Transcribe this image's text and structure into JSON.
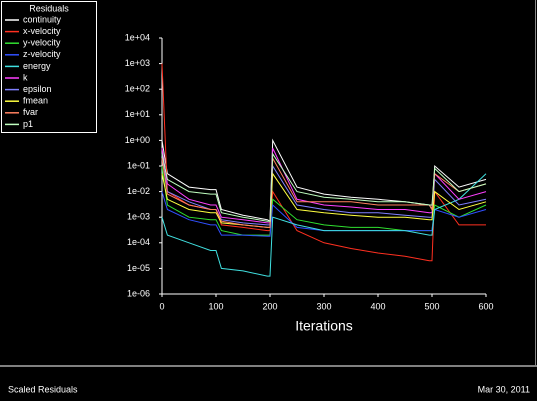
{
  "chart_data": {
    "type": "line",
    "log_y": true,
    "legend_title": "Residuals",
    "xlabel": "Iterations",
    "x": [
      0,
      10,
      50,
      90,
      100,
      110,
      150,
      195,
      200,
      205,
      250,
      300,
      350,
      400,
      450,
      495,
      500,
      505,
      550,
      600
    ],
    "xlim": [
      0,
      600
    ],
    "xticks": [
      0,
      100,
      200,
      300,
      400,
      500,
      600
    ],
    "ylim": [
      1e-06,
      10000
    ],
    "yticks": [
      {
        "value": 10000,
        "label": "1e+04"
      },
      {
        "value": 1000,
        "label": "1e+03"
      },
      {
        "value": 100,
        "label": "1e+02"
      },
      {
        "value": 10,
        "label": "1e+01"
      },
      {
        "value": 1,
        "label": "1e+00"
      },
      {
        "value": 0.1,
        "label": "1e-01"
      },
      {
        "value": 0.01,
        "label": "1e-02"
      },
      {
        "value": 0.001,
        "label": "1e-03"
      },
      {
        "value": 0.0001,
        "label": "1e-04"
      },
      {
        "value": 1e-05,
        "label": "1e-05"
      },
      {
        "value": 1e-06,
        "label": "1e-06"
      }
    ],
    "series": [
      {
        "name": "continuity",
        "color": "#ffffff",
        "values": [
          1,
          0.05,
          0.015,
          0.012,
          0.012,
          0.002,
          0.0012,
          0.0008,
          0.0007,
          1,
          0.015,
          0.008,
          0.006,
          0.005,
          0.004,
          0.003,
          0.002,
          0.1,
          0.015,
          0.03
        ]
      },
      {
        "name": "x-velocity",
        "color": "#ff3020",
        "values": [
          1000,
          0.01,
          0.003,
          0.002,
          0.002,
          0.0005,
          0.0004,
          0.0003,
          0.0003,
          0.01,
          0.0003,
          0.0001,
          6e-05,
          4e-05,
          3e-05,
          2e-05,
          2e-05,
          0.01,
          0.0005,
          0.0005
        ]
      },
      {
        "name": "y-velocity",
        "color": "#30e030",
        "values": [
          0.1,
          0.003,
          0.001,
          0.0008,
          0.0008,
          0.0003,
          0.0002,
          0.0002,
          0.0002,
          0.005,
          0.0008,
          0.0005,
          0.0004,
          0.0004,
          0.0003,
          0.0003,
          0.0003,
          0.003,
          0.001,
          0.003
        ]
      },
      {
        "name": "z-velocity",
        "color": "#3050ff",
        "values": [
          0.01,
          0.002,
          0.0008,
          0.0005,
          0.0005,
          0.0002,
          0.0002,
          0.00018,
          0.00018,
          0.003,
          0.0004,
          0.0003,
          0.0003,
          0.0003,
          0.0003,
          0.0003,
          0.0003,
          0.002,
          0.001,
          0.002
        ]
      },
      {
        "name": "energy",
        "color": "#40e0e0",
        "values": [
          0.001,
          0.0002,
          0.0001,
          5e-05,
          5e-05,
          1e-05,
          8e-06,
          5e-06,
          5e-06,
          0.001,
          0.0005,
          0.0003,
          0.0003,
          0.0003,
          0.0003,
          0.0002,
          0.0002,
          0.002,
          0.005,
          0.05
        ]
      },
      {
        "name": "k",
        "color": "#ff40ff",
        "values": [
          0.5,
          0.02,
          0.005,
          0.003,
          0.003,
          0.001,
          0.0008,
          0.0006,
          0.0006,
          0.5,
          0.005,
          0.003,
          0.0025,
          0.002,
          0.002,
          0.0015,
          0.0015,
          0.05,
          0.005,
          0.01
        ]
      },
      {
        "name": "epsilon",
        "color": "#8080ff",
        "values": [
          0.3,
          0.01,
          0.004,
          0.002,
          0.002,
          0.0008,
          0.0006,
          0.0005,
          0.0005,
          0.1,
          0.003,
          0.002,
          0.0015,
          0.0015,
          0.0012,
          0.001,
          0.001,
          0.03,
          0.003,
          0.005
        ]
      },
      {
        "name": "fmean",
        "color": "#ffff40",
        "values": [
          0.05,
          0.005,
          0.002,
          0.0015,
          0.0015,
          0.0006,
          0.0005,
          0.0004,
          0.0004,
          0.05,
          0.002,
          0.0015,
          0.0012,
          0.001,
          0.001,
          0.0008,
          0.0008,
          0.01,
          0.002,
          0.004
        ]
      },
      {
        "name": "fvar",
        "color": "#ff8060",
        "values": [
          0.2,
          0.008,
          0.003,
          0.002,
          0.002,
          0.0007,
          0.0005,
          0.0004,
          0.0004,
          0.2,
          0.004,
          0.004,
          0.004,
          0.003,
          0.003,
          0.003,
          0.002,
          0.05,
          0.01,
          0.02
        ]
      },
      {
        "name": "p1",
        "color": "#c0ffc0",
        "values": [
          0.3,
          0.03,
          0.01,
          0.008,
          0.008,
          0.0015,
          0.001,
          0.0007,
          0.0007,
          0.3,
          0.01,
          0.006,
          0.005,
          0.004,
          0.004,
          0.003,
          0.003,
          0.08,
          0.01,
          0.02
        ]
      }
    ]
  },
  "footer": {
    "left": "Scaled Residuals",
    "right": "Mar 30, 2011"
  }
}
